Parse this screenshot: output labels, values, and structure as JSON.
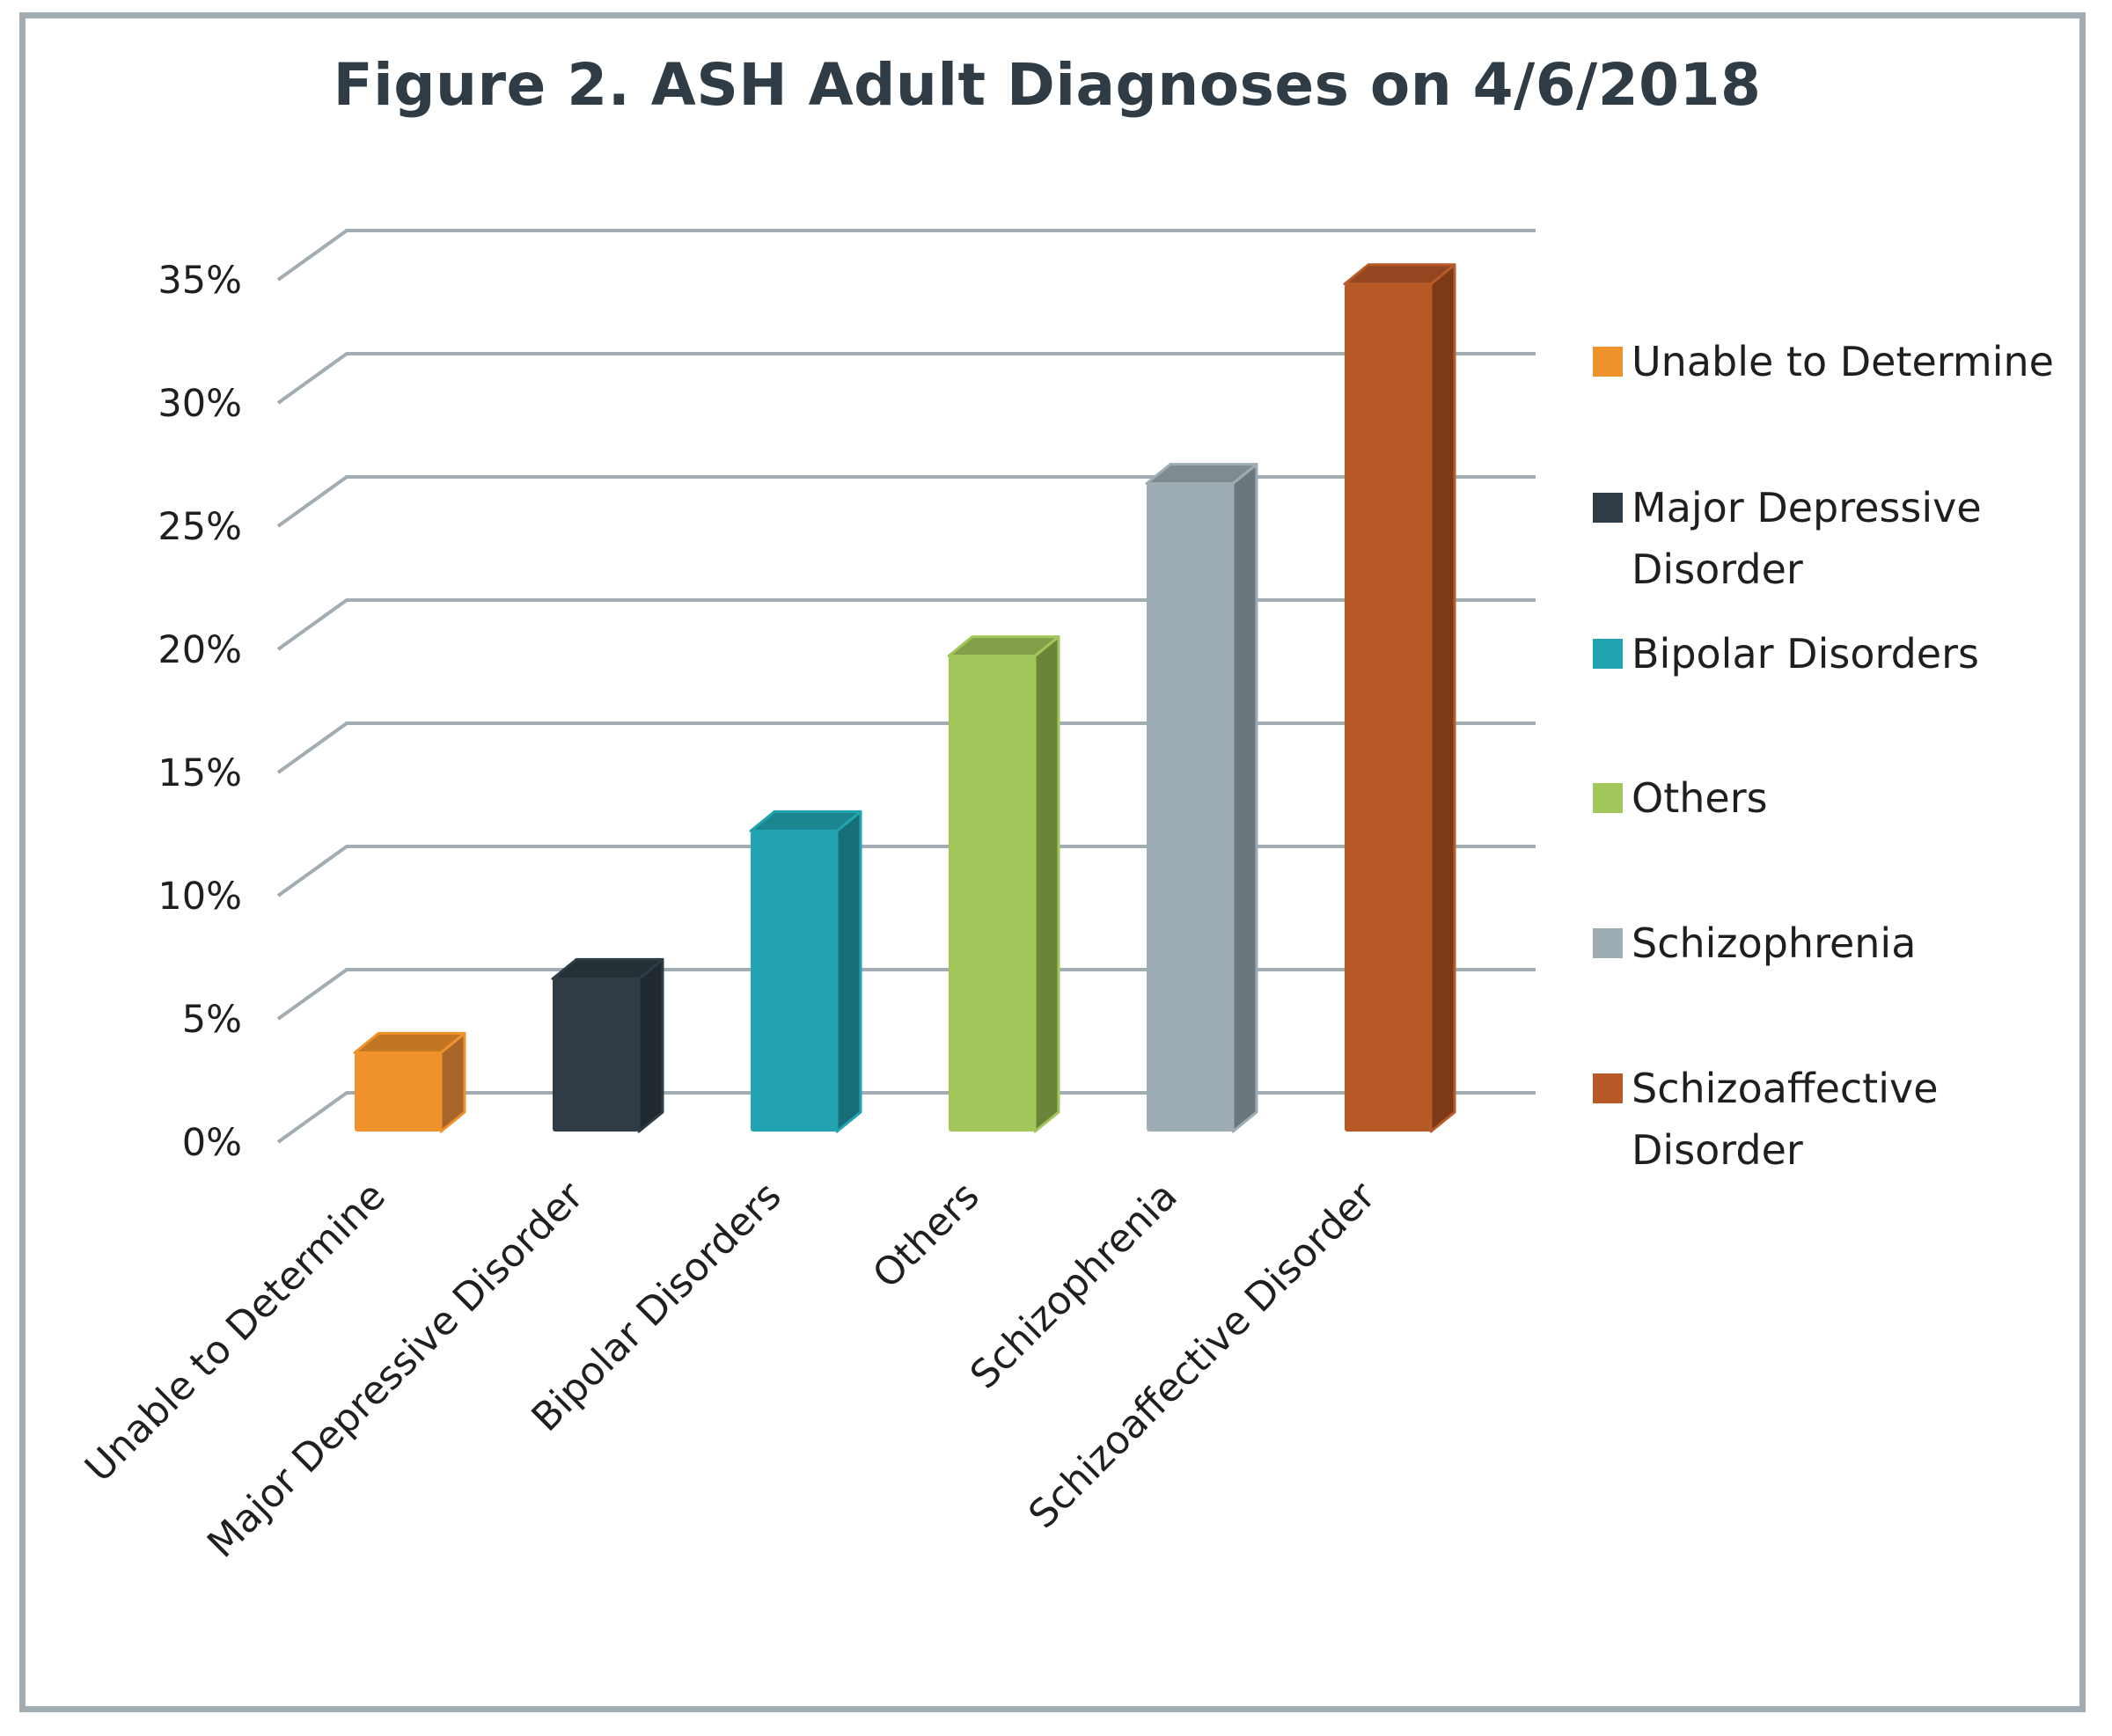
{
  "chart_data": {
    "type": "bar",
    "title": "Figure 2. ASH Adult Diagnoses on 4/6/2018",
    "categories": [
      "Unable to Determine",
      "Major Depressive Disorder",
      "Bipolar Disorders",
      "Others",
      "Schizophrenia",
      "Schizoaffective Disorder"
    ],
    "values": [
      3.2,
      6.2,
      12.2,
      19.3,
      26.3,
      34.4
    ],
    "unit": "%",
    "ylim": [
      0,
      35
    ],
    "yticks": [
      "0%",
      "5%",
      "10%",
      "15%",
      "20%",
      "25%",
      "30%",
      "35%"
    ],
    "grid": true,
    "three_d": true,
    "legend_position": "right",
    "legend": [
      {
        "lines": [
          "Unable to Determine"
        ],
        "color": "#f0922b"
      },
      {
        "lines": [
          "Major Depressive",
          "Disorder"
        ],
        "color": "#2f3c45"
      },
      {
        "lines": [
          "Bipolar Disorders"
        ],
        "color": "#22a3b1"
      },
      {
        "lines": [
          "Others"
        ],
        "color": "#a3c65b"
      },
      {
        "lines": [
          "Schizophrenia"
        ],
        "color": "#9eacb4"
      },
      {
        "lines": [
          "Schizoaffective",
          "Disorder"
        ],
        "color": "#b85a28"
      }
    ],
    "colors": {
      "front": [
        "#f0922b",
        "#2f3c45",
        "#22a3b1",
        "#a3c65b",
        "#9eacb4",
        "#b85a28"
      ],
      "side": [
        "#a9662b",
        "#20292f",
        "#166f78",
        "#6b8438",
        "#6b767d",
        "#7d3a17"
      ],
      "top": [
        "#c27624",
        "#252f36",
        "#1b8590",
        "#839f49",
        "#7f8a91",
        "#93461f"
      ]
    }
  }
}
